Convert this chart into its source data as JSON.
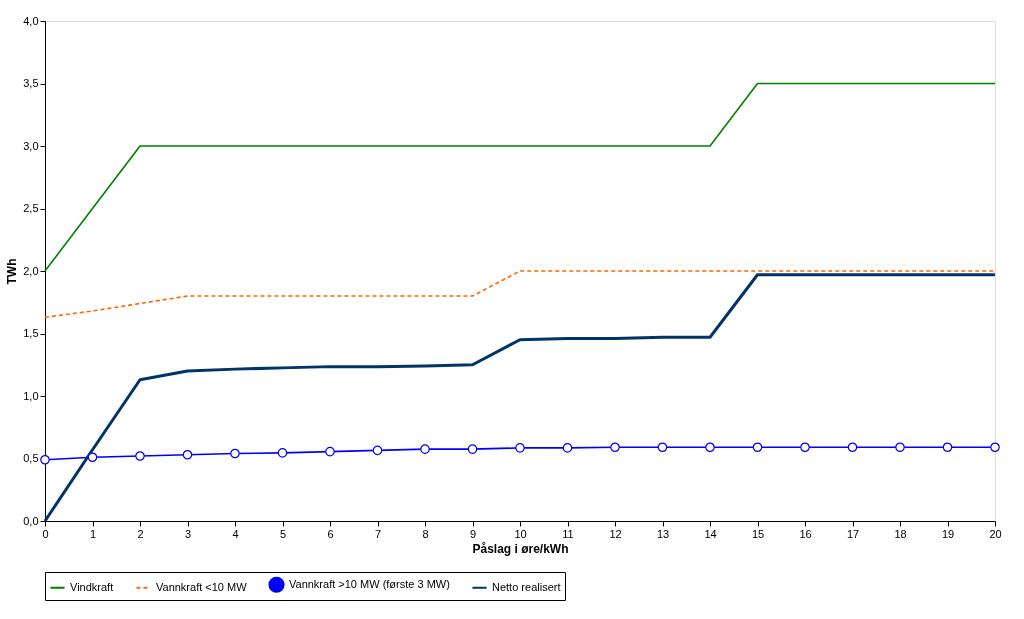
{
  "chart_data": {
    "type": "line",
    "xlabel": "Påslag i øre/kWh",
    "ylabel": "TWh",
    "x": [
      0,
      1,
      2,
      3,
      4,
      5,
      6,
      7,
      8,
      9,
      10,
      11,
      12,
      13,
      14,
      15,
      16,
      17,
      18,
      19,
      20
    ],
    "xlim": [
      0,
      20
    ],
    "xticks": [
      0,
      1,
      2,
      3,
      4,
      5,
      6,
      7,
      8,
      9,
      10,
      11,
      12,
      13,
      14,
      15,
      16,
      17,
      18,
      19,
      20
    ],
    "ylim": [
      0,
      4
    ],
    "yticks": [
      {
        "value": 0,
        "label": "0,0"
      },
      {
        "value": 0.5,
        "label": "0,5"
      },
      {
        "value": 1,
        "label": "1,0"
      },
      {
        "value": 1.5,
        "label": "1,5"
      },
      {
        "value": 2,
        "label": "2,0"
      },
      {
        "value": 2.5,
        "label": "2,5"
      },
      {
        "value": 3,
        "label": "3,0"
      },
      {
        "value": 3.5,
        "label": "3,5"
      },
      {
        "value": 4,
        "label": "4,0"
      }
    ],
    "grid": false,
    "legend": "bottom",
    "series": [
      {
        "name": "Vindkraft",
        "color": "#008000",
        "line_style": "solid",
        "marker": "none",
        "values": [
          2.0,
          2.5,
          3.0,
          3.0,
          3.0,
          3.0,
          3.0,
          3.0,
          3.0,
          3.0,
          3.0,
          3.0,
          3.0,
          3.0,
          3.0,
          3.5,
          3.5,
          3.5,
          3.5,
          3.5,
          3.5
        ]
      },
      {
        "name": "Vannkraft <10 MW",
        "color": "#ff6600",
        "line_style": "dashed",
        "marker": "none",
        "values": [
          1.63,
          1.68,
          1.74,
          1.8,
          1.8,
          1.8,
          1.8,
          1.8,
          1.8,
          1.8,
          2.0,
          2.0,
          2.0,
          2.0,
          2.0,
          2.0,
          2.0,
          2.0,
          2.0,
          2.0,
          2.0
        ]
      },
      {
        "name": "Vannkraft >10 MW (første 3 MW)",
        "color": "#0000ff",
        "line_style": "solid",
        "marker": "circle",
        "values": [
          0.49,
          0.51,
          0.52,
          0.53,
          0.54,
          0.545,
          0.555,
          0.565,
          0.575,
          0.575,
          0.585,
          0.585,
          0.59,
          0.59,
          0.59,
          0.59,
          0.59,
          0.59,
          0.59,
          0.59,
          0.59
        ]
      },
      {
        "name": "Netto realisert",
        "color": "#003366",
        "line_style": "solid",
        "marker": "none",
        "values": [
          0,
          0.57,
          1.13,
          1.2,
          1.215,
          1.225,
          1.235,
          1.235,
          1.24,
          1.25,
          1.45,
          1.46,
          1.46,
          1.47,
          1.47,
          1.97,
          1.97,
          1.97,
          1.97,
          1.97,
          1.97
        ]
      }
    ]
  }
}
